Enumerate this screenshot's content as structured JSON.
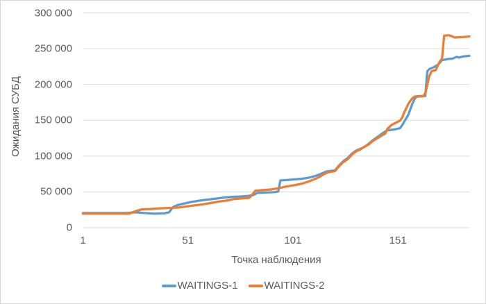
{
  "chart_data": {
    "type": "line",
    "title": "",
    "xlabel": "Точка наблюдения",
    "ylabel": "Ожидания СУБД",
    "x_range": [
      1,
      185
    ],
    "y_range": [
      0,
      300000
    ],
    "x_ticks": [
      1,
      51,
      101,
      151
    ],
    "y_ticks": [
      {
        "value": 0,
        "label": "0"
      },
      {
        "value": 50000,
        "label": "50 000"
      },
      {
        "value": 100000,
        "label": "100 000"
      },
      {
        "value": 150000,
        "label": "150 000"
      },
      {
        "value": 200000,
        "label": "200 000"
      },
      {
        "value": 250000,
        "label": "250 000"
      },
      {
        "value": 300000,
        "label": "300 000"
      }
    ],
    "grid": "horizontal",
    "legend_position": "bottom",
    "colors": {
      "grid": "#d9d9d9",
      "text": "#595959",
      "background": "#ffffff",
      "border": "#d6d6d6",
      "series1": "#5B9BD5",
      "series2": "#ED7D31"
    },
    "series": [
      {
        "name": "WAITINGS-1",
        "color": "#5B9BD5",
        "points": [
          [
            1,
            20500
          ],
          [
            12,
            20500
          ],
          [
            22,
            20500
          ],
          [
            26,
            21500
          ],
          [
            30,
            20500
          ],
          [
            35,
            19500
          ],
          [
            40,
            20000
          ],
          [
            42,
            21500
          ],
          [
            44,
            29000
          ],
          [
            46,
            31500
          ],
          [
            49,
            33500
          ],
          [
            52,
            35500
          ],
          [
            56,
            37500
          ],
          [
            60,
            39000
          ],
          [
            64,
            40500
          ],
          [
            68,
            42000
          ],
          [
            72,
            43000
          ],
          [
            76,
            43500
          ],
          [
            80,
            44500
          ],
          [
            82,
            45500
          ],
          [
            84,
            48500
          ],
          [
            88,
            49000
          ],
          [
            92,
            49500
          ],
          [
            94,
            50500
          ],
          [
            95,
            66000
          ],
          [
            98,
            66500
          ],
          [
            102,
            67500
          ],
          [
            106,
            68500
          ],
          [
            109,
            70000
          ],
          [
            112,
            72500
          ],
          [
            115,
            76000
          ],
          [
            117,
            78500
          ],
          [
            121,
            80000
          ],
          [
            123,
            87000
          ],
          [
            125,
            93000
          ],
          [
            127,
            97000
          ],
          [
            129,
            103000
          ],
          [
            131,
            107500
          ],
          [
            133,
            110000
          ],
          [
            135,
            112500
          ],
          [
            137,
            117000
          ],
          [
            139,
            122000
          ],
          [
            141,
            126000
          ],
          [
            143,
            130500
          ],
          [
            144,
            132500
          ],
          [
            146,
            136000
          ],
          [
            149,
            137000
          ],
          [
            152,
            139000
          ],
          [
            153,
            143000
          ],
          [
            154,
            148000
          ],
          [
            155,
            153000
          ],
          [
            156,
            158000
          ],
          [
            157,
            166000
          ],
          [
            158,
            174000
          ],
          [
            159,
            180000
          ],
          [
            160,
            183500
          ],
          [
            164,
            184000
          ],
          [
            165,
            218500
          ],
          [
            166,
            221500
          ],
          [
            168,
            224000
          ],
          [
            170,
            227500
          ],
          [
            171,
            230500
          ],
          [
            172,
            234000
          ],
          [
            175,
            235500
          ],
          [
            177,
            236000
          ],
          [
            179,
            238500
          ],
          [
            180,
            237500
          ],
          [
            182,
            239000
          ],
          [
            185,
            240000
          ]
        ]
      },
      {
        "name": "WAITINGS-2",
        "color": "#ED7D31",
        "points": [
          [
            1,
            19500
          ],
          [
            12,
            19500
          ],
          [
            23,
            19500
          ],
          [
            26,
            23000
          ],
          [
            29,
            25500
          ],
          [
            33,
            26000
          ],
          [
            38,
            27000
          ],
          [
            42,
            27500
          ],
          [
            46,
            28000
          ],
          [
            50,
            29500
          ],
          [
            54,
            31000
          ],
          [
            58,
            32500
          ],
          [
            62,
            34500
          ],
          [
            66,
            36500
          ],
          [
            70,
            38000
          ],
          [
            73,
            40000
          ],
          [
            77,
            41000
          ],
          [
            80,
            41500
          ],
          [
            81,
            44000
          ],
          [
            83,
            51500
          ],
          [
            87,
            52500
          ],
          [
            91,
            53500
          ],
          [
            94,
            55000
          ],
          [
            97,
            57000
          ],
          [
            100,
            58500
          ],
          [
            103,
            60000
          ],
          [
            106,
            62000
          ],
          [
            109,
            65000
          ],
          [
            112,
            68500
          ],
          [
            114,
            71500
          ],
          [
            116,
            75000
          ],
          [
            118,
            77500
          ],
          [
            121,
            79000
          ],
          [
            123,
            86000
          ],
          [
            125,
            91500
          ],
          [
            127,
            95500
          ],
          [
            129,
            101500
          ],
          [
            131,
            106500
          ],
          [
            133,
            109000
          ],
          [
            135,
            113000
          ],
          [
            137,
            116000
          ],
          [
            139,
            121000
          ],
          [
            141,
            124500
          ],
          [
            143,
            128000
          ],
          [
            145,
            131500
          ],
          [
            146,
            138000
          ],
          [
            148,
            143500
          ],
          [
            150,
            146500
          ],
          [
            152,
            149500
          ],
          [
            153,
            153500
          ],
          [
            154,
            161000
          ],
          [
            155,
            167000
          ],
          [
            156,
            173000
          ],
          [
            157,
            177500
          ],
          [
            158,
            181000
          ],
          [
            159,
            183000
          ],
          [
            163,
            183500
          ],
          [
            164,
            187500
          ],
          [
            165,
            199500
          ],
          [
            166,
            212000
          ],
          [
            167,
            218500
          ],
          [
            169,
            220000
          ],
          [
            170,
            226500
          ],
          [
            171,
            232500
          ],
          [
            172,
            236000
          ],
          [
            173,
            268000
          ],
          [
            175,
            268800
          ],
          [
            177,
            267000
          ],
          [
            178,
            265500
          ],
          [
            180,
            266000
          ],
          [
            183,
            266500
          ],
          [
            185,
            267000
          ]
        ]
      }
    ]
  }
}
